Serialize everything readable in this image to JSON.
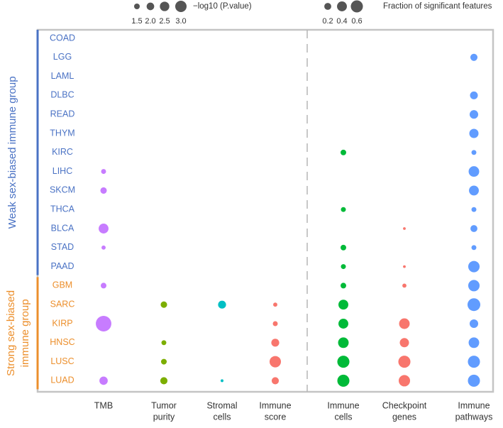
{
  "chart_data": {
    "type": "bubble",
    "groups": [
      {
        "label": [
          "Weak sex-biased immune group"
        ],
        "color": "#4a72c4",
        "categories": [
          "COAD",
          "LGG",
          "LAML",
          "DLBC",
          "READ",
          "THYM",
          "KIRC",
          "LIHC",
          "SKCM",
          "THCA",
          "BLCA",
          "STAD",
          "PAAD"
        ]
      },
      {
        "label": [
          "Strong sex-biased",
          "immune group"
        ],
        "color": "#ec8f2c",
        "categories": [
          "GBM",
          "SARC",
          "KIRP",
          "HNSC",
          "LUSC",
          "LUAD"
        ]
      }
    ],
    "panels": [
      {
        "size_title": "−log10 (P.value)",
        "size_legend": [
          1.5,
          {
            "value": 2,
            "label": "2.0"
          },
          2.5,
          {
            "value": 3,
            "label": "3.0"
          }
        ],
        "series": [
          {
            "name": [
              "TMB"
            ],
            "color": "#c77cff",
            "values": [
              null,
              null,
              null,
              null,
              null,
              null,
              null,
              1.3,
              1.7,
              null,
              2.6,
              1.1,
              null,
              1.5,
              null,
              4.1,
              null,
              null,
              2.2
            ]
          },
          {
            "name": [
              "Tumor",
              "purity"
            ],
            "color": "#7cae00",
            "values": [
              null,
              null,
              null,
              null,
              null,
              null,
              null,
              null,
              null,
              null,
              null,
              null,
              null,
              null,
              1.7,
              null,
              1.3,
              1.5,
              1.9
            ]
          },
          {
            "name": [
              "Stromal",
              "cells"
            ],
            "color": "#00bfc4",
            "values": [
              null,
              null,
              null,
              null,
              null,
              null,
              null,
              null,
              null,
              null,
              null,
              null,
              null,
              null,
              2.1,
              null,
              null,
              null,
              0.75
            ]
          },
          {
            "name": [
              "Immune",
              "score"
            ],
            "color": "#f8766d",
            "values": [
              null,
              null,
              null,
              null,
              null,
              null,
              null,
              null,
              null,
              null,
              null,
              null,
              null,
              null,
              1.1,
              1.3,
              2.1,
              3.0,
              1.9
            ]
          }
        ]
      },
      {
        "size_title": "Fraction of significant features",
        "size_legend": [
          0.2,
          0.4,
          0.6
        ],
        "series": [
          {
            "name": [
              "Immune",
              "cells"
            ],
            "color": "#00ba38",
            "values": [
              null,
              null,
              null,
              null,
              null,
              null,
              0.13,
              null,
              null,
              0.1,
              null,
              0.13,
              0.1,
              0.13,
              0.4,
              0.4,
              0.46,
              0.6,
              0.6
            ]
          },
          {
            "name": [
              "Checkpoint",
              "genes"
            ],
            "color": "#f8766d",
            "values": [
              null,
              null,
              null,
              null,
              null,
              null,
              null,
              null,
              null,
              null,
              0.03,
              null,
              0.03,
              0.07,
              null,
              0.46,
              0.35,
              0.6,
              0.53
            ]
          },
          {
            "name": [
              "Immune",
              "pathways"
            ],
            "color": "#619cff",
            "values": [
              null,
              0.21,
              null,
              0.25,
              0.3,
              0.35,
              0.1,
              0.46,
              0.4,
              0.1,
              0.2,
              0.1,
              0.53,
              0.53,
              0.67,
              0.3,
              0.46,
              0.6,
              0.6
            ]
          }
        ]
      }
    ]
  }
}
